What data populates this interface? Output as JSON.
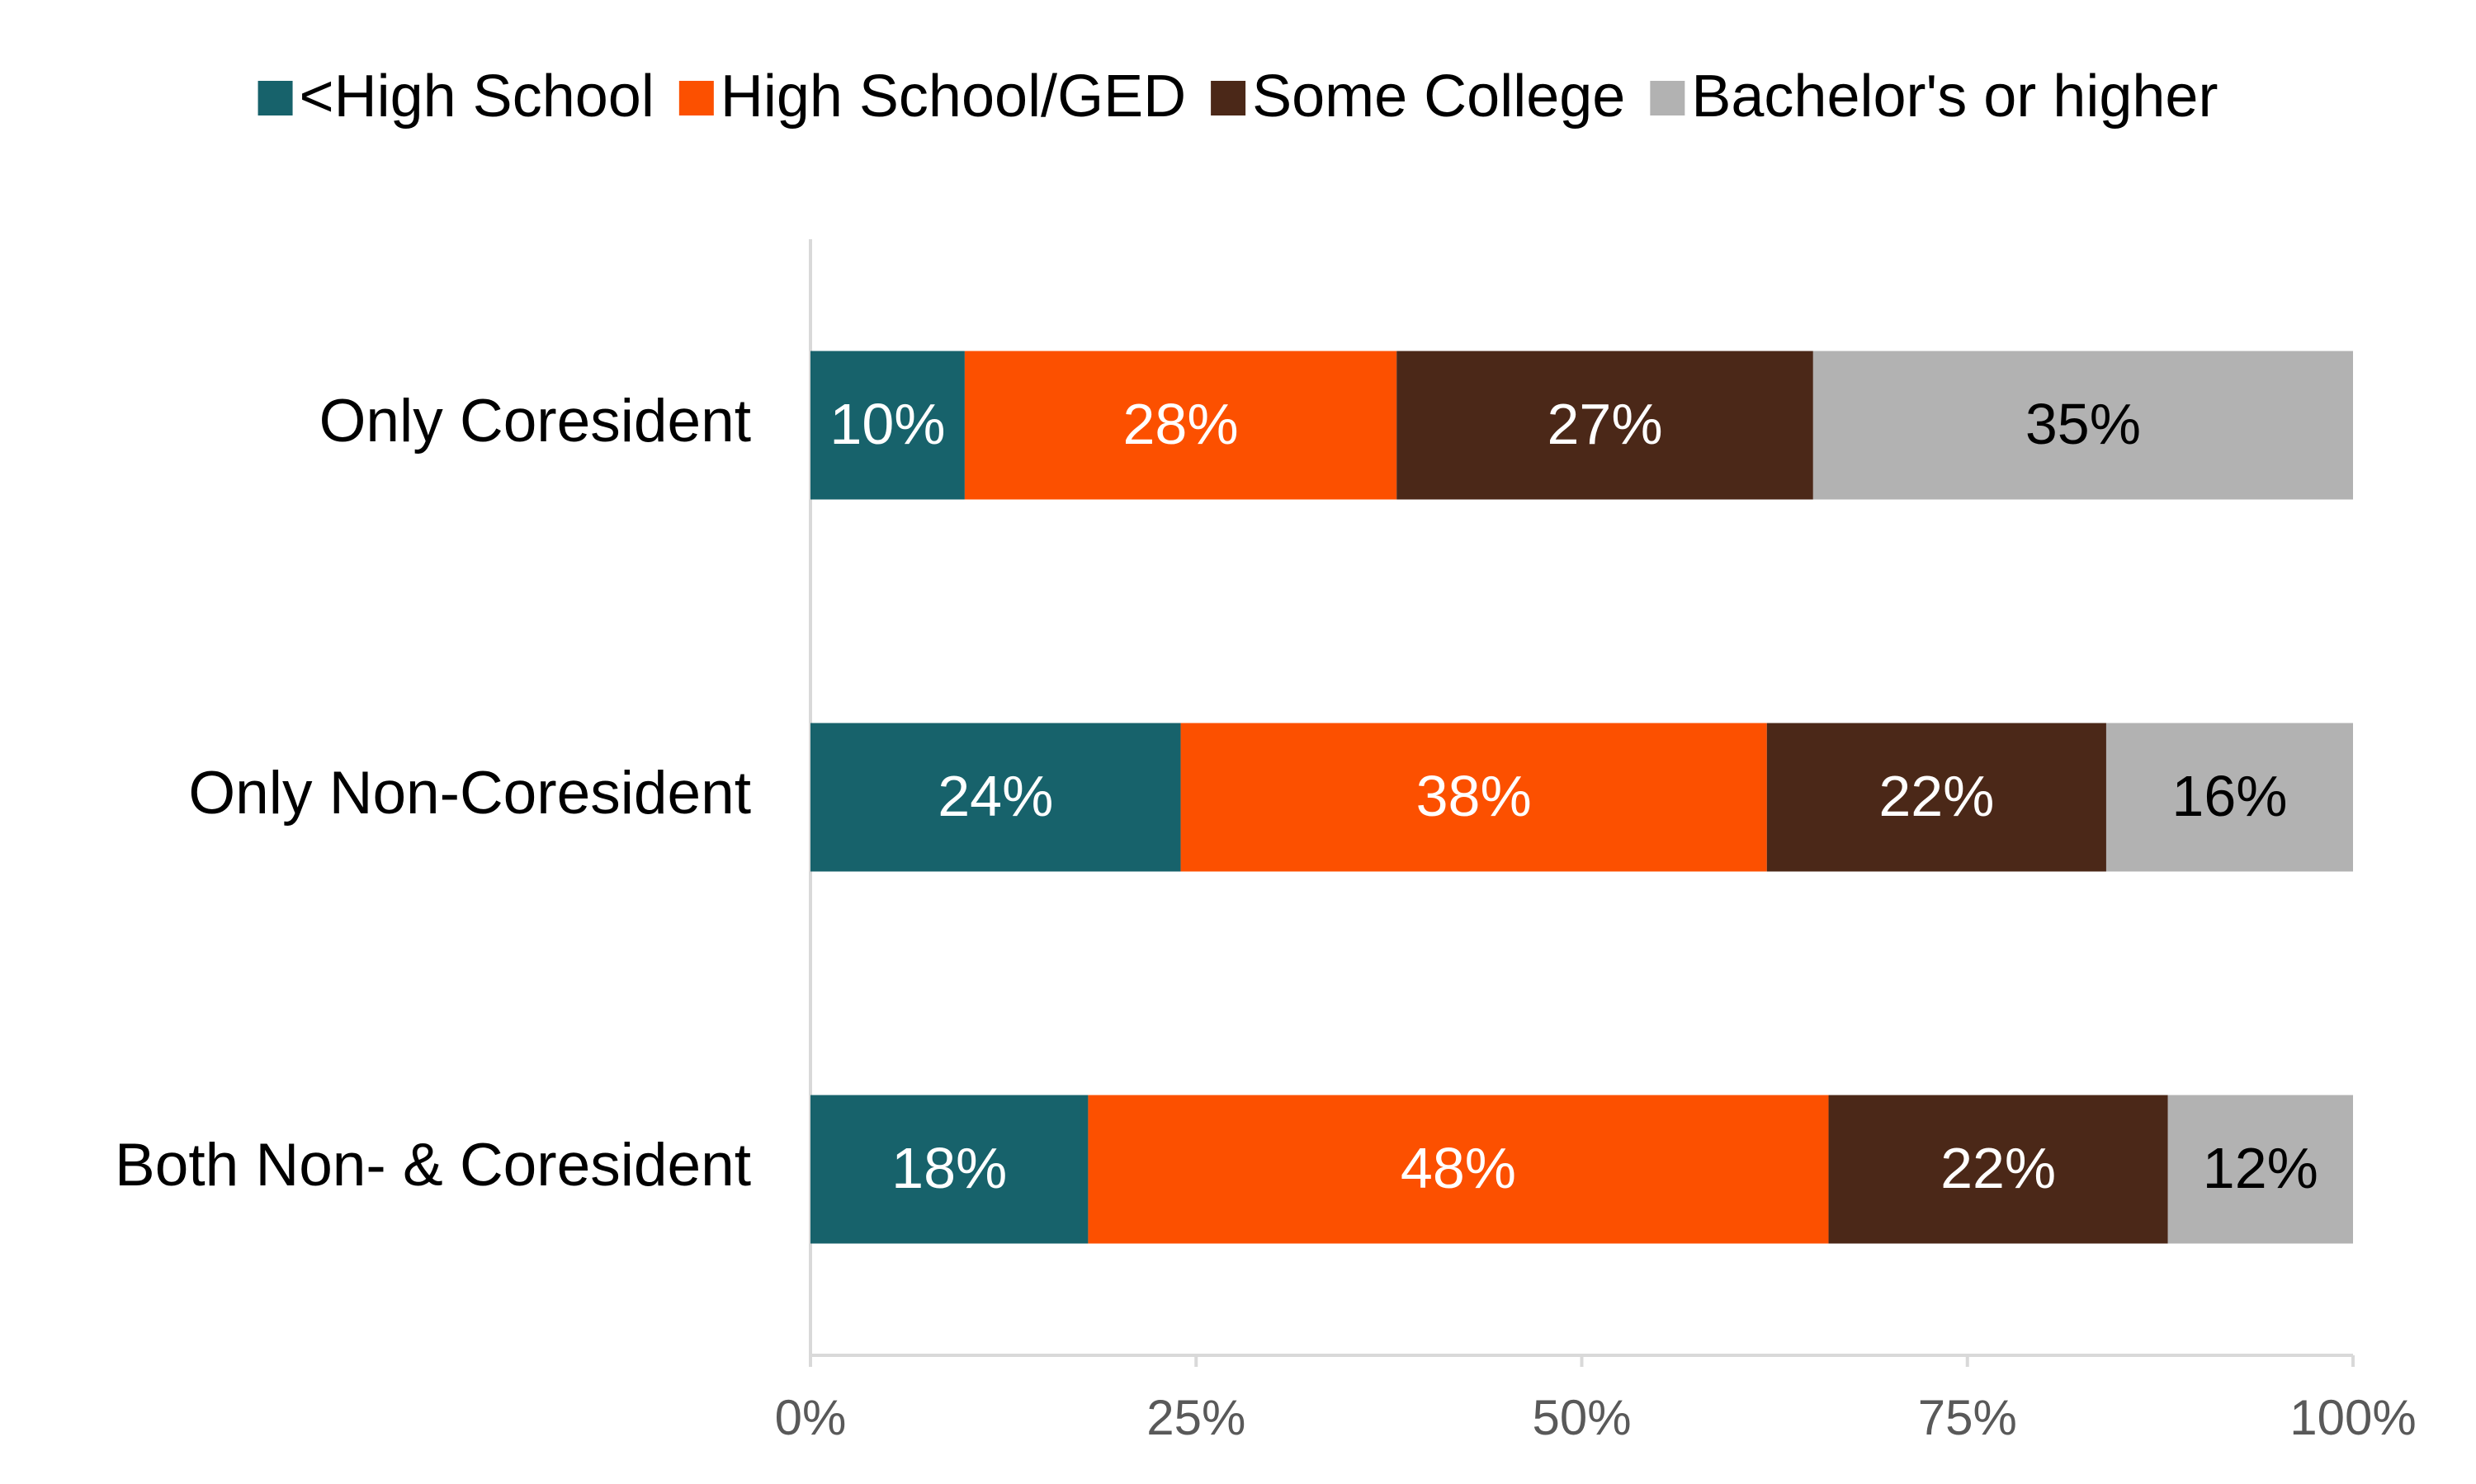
{
  "chart_data": {
    "type": "stacked_barh",
    "categories": [
      "Only Coresident",
      "Only Non-Coresident",
      "Both Non- & Coresident"
    ],
    "series": [
      {
        "name": "<High School",
        "color": "#17626b",
        "values": [
          10,
          24,
          18
        ],
        "value_labels": [
          "10%",
          "24%",
          "18%"
        ]
      },
      {
        "name": "High School/GED",
        "color": "#fc5000",
        "values": [
          28,
          38,
          48
        ],
        "value_labels": [
          "28%",
          "38%",
          "48%"
        ]
      },
      {
        "name": "Some College",
        "color": "#4b2818",
        "values": [
          27,
          22,
          22
        ],
        "value_labels": [
          "27%",
          "22%",
          "22%"
        ]
      },
      {
        "name": "Bachelor's or higher",
        "color": "#b2b2b2",
        "values": [
          35,
          16,
          12
        ],
        "value_labels": [
          "35%",
          "16%",
          "12%"
        ]
      }
    ],
    "xlim": [
      0,
      100
    ],
    "xticks": [
      {
        "value": 0,
        "label": "0%"
      },
      {
        "value": 25,
        "label": "25%"
      },
      {
        "value": 50,
        "label": "50%"
      },
      {
        "value": 75,
        "label": "75%"
      },
      {
        "value": 100,
        "label": "100%"
      }
    ],
    "grid": false,
    "legend": "top"
  }
}
